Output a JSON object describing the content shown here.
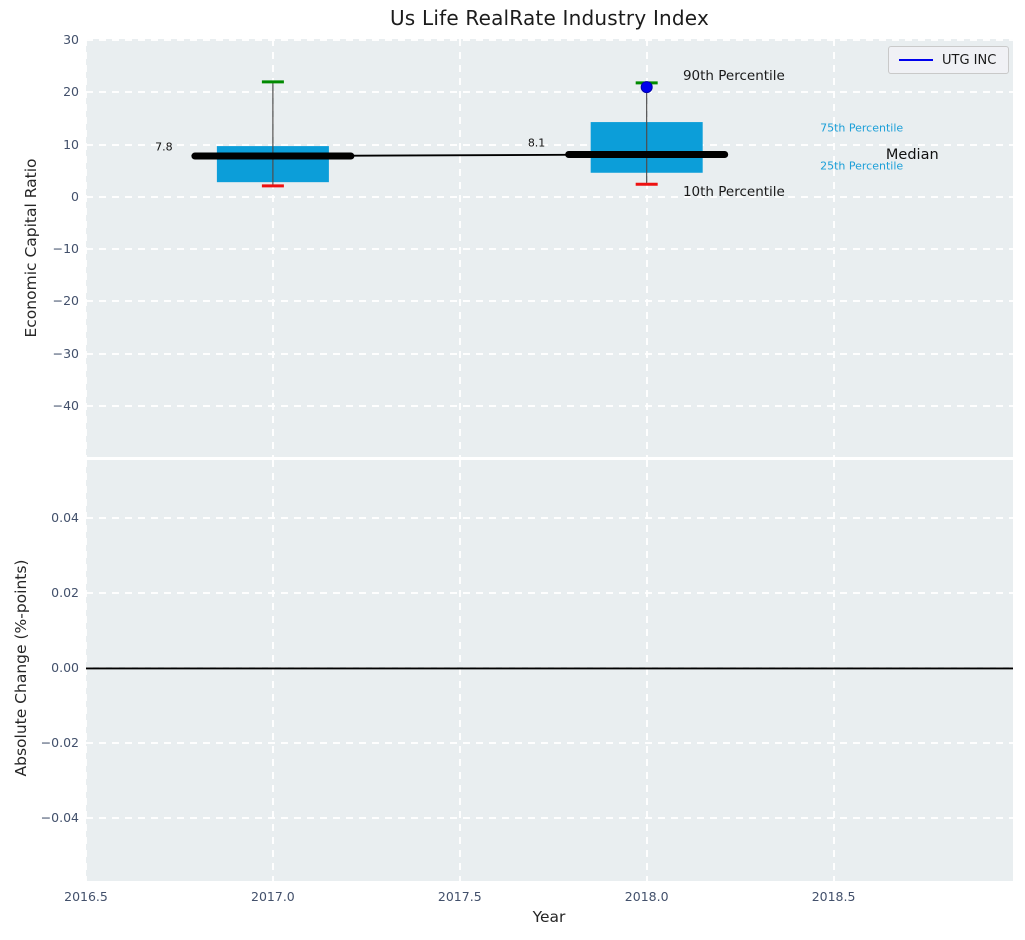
{
  "colors": {
    "axes_background": "#e9eef0",
    "grid": "#ffffff",
    "tick_text": "#42506b",
    "box_fill": "#0c9ed9",
    "percentile_text": "#1b9fd8",
    "p90_cap": "#008a00",
    "p10_cap": "#ee1111",
    "whisker": "#4d4d4d",
    "median": "#000000",
    "company_point": "#0000ee",
    "zero_line": "#000000"
  },
  "chart_data": [
    {
      "type": "boxplot",
      "title": "Us Life RealRate Industry Index",
      "ylabel": "Economic Capital Ratio",
      "xlim": [
        2016.5,
        2018.98
      ],
      "ylim": [
        -49.8,
        30.2
      ],
      "yticks": [
        30,
        20,
        10,
        0,
        -10,
        -20,
        -30,
        -40
      ],
      "ytick_labels": [
        "30",
        "20",
        "10",
        "0",
        "−10",
        "−20",
        "−30",
        "−40"
      ],
      "xticks": [
        2016.5,
        2017.0,
        2017.5,
        2018.0,
        2018.5
      ],
      "xtick_labels": [
        "2016.5",
        "2017.0",
        "2017.5",
        "2018.0",
        "2018.5"
      ],
      "grid": "white-dashed",
      "boxes": [
        {
          "year": 2017,
          "p10": 2.1,
          "q1": 2.8,
          "median": 7.8,
          "q3": 9.7,
          "p90": 22.0
        },
        {
          "year": 2018,
          "p10": 2.4,
          "q1": 4.6,
          "median": 8.1,
          "q3": 14.3,
          "p90": 21.8
        }
      ],
      "median_trend": [
        [
          2017,
          7.8
        ],
        [
          2018,
          8.1
        ]
      ],
      "points": [
        {
          "series": "UTG INC",
          "year": 2018,
          "value": 21.0
        }
      ],
      "annotations": [
        {
          "text": "7.8",
          "x": 2016.685,
          "y": 9.6,
          "kind": "value"
        },
        {
          "text": "8.1",
          "x": 2017.682,
          "y": 10.3,
          "kind": "value"
        },
        {
          "text": "90th Percentile",
          "x": 2018.097,
          "y": 23.1,
          "kind": "label"
        },
        {
          "text": "10th Percentile",
          "x": 2018.097,
          "y": 0.9,
          "kind": "label"
        },
        {
          "text": "75th Percentile",
          "x": 2018.464,
          "y": 13.2,
          "kind": "pct"
        },
        {
          "text": "Median",
          "x": 2018.64,
          "y": 8.0,
          "kind": "median"
        },
        {
          "text": "25th Percentile",
          "x": 2018.464,
          "y": 5.9,
          "kind": "pct"
        }
      ],
      "legend": {
        "position": "upper right",
        "entries": [
          {
            "label": "UTG INC",
            "color": "#0000ee"
          }
        ]
      }
    },
    {
      "type": "line",
      "ylabel": "Absolute Change (%-points)",
      "xlabel": "Year",
      "xlim": [
        2016.5,
        2018.98
      ],
      "ylim": [
        -0.0567,
        0.0556
      ],
      "yticks": [
        0.04,
        0.02,
        0.0,
        -0.02,
        -0.04
      ],
      "ytick_labels": [
        "0.04",
        "0.02",
        "0.00",
        "−0.02",
        "−0.04"
      ],
      "xticks": [
        2016.5,
        2017.0,
        2017.5,
        2018.0,
        2018.5
      ],
      "xtick_labels": [
        "2016.5",
        "2017.0",
        "2017.5",
        "2018.0",
        "2018.5"
      ],
      "grid": "white-dashed",
      "zero_line": 0.0,
      "series": []
    }
  ]
}
